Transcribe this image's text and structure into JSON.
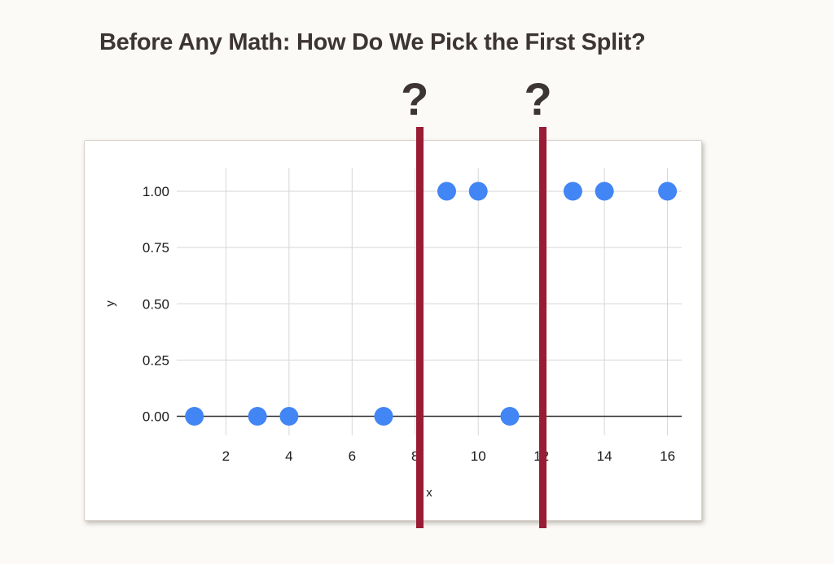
{
  "slide": {
    "title": "Before Any Math: How Do We Pick the First Split?"
  },
  "split_markers": [
    {
      "label": "?"
    },
    {
      "label": "?"
    }
  ],
  "colors": {
    "split_line": "#9a1c34",
    "point": "#4285f4",
    "grid": "#d6d6d6",
    "axis": "#2e2e2e",
    "title_text": "#3d3533",
    "card_background": "#ffffff",
    "page_background": "#fbfaf7"
  },
  "chart_data": {
    "type": "scatter",
    "title": "",
    "xlabel": "x",
    "ylabel": "y",
    "x_ticks": [
      2,
      4,
      6,
      8,
      10,
      12,
      14,
      16
    ],
    "y_ticks": [
      0,
      0.25,
      0.5,
      0.75,
      1
    ],
    "y_tick_labels": [
      "0.00",
      "0.25",
      "0.50",
      "0.75",
      "1.00"
    ],
    "xlim": [
      0.44,
      16.45
    ],
    "ylim": [
      -0.085,
      1.105
    ],
    "grid": true,
    "legend": false,
    "point_color": "#4285f4",
    "point_radius": 11.5,
    "points": [
      {
        "x": 1,
        "y": 0
      },
      {
        "x": 3,
        "y": 0
      },
      {
        "x": 4,
        "y": 0
      },
      {
        "x": 7,
        "y": 0
      },
      {
        "x": 11,
        "y": 0
      },
      {
        "x": 9,
        "y": 1
      },
      {
        "x": 10,
        "y": 1
      },
      {
        "x": 13,
        "y": 1
      },
      {
        "x": 14,
        "y": 1
      },
      {
        "x": 16,
        "y": 1
      }
    ],
    "split_lines": [
      8.14,
      12.05
    ]
  }
}
